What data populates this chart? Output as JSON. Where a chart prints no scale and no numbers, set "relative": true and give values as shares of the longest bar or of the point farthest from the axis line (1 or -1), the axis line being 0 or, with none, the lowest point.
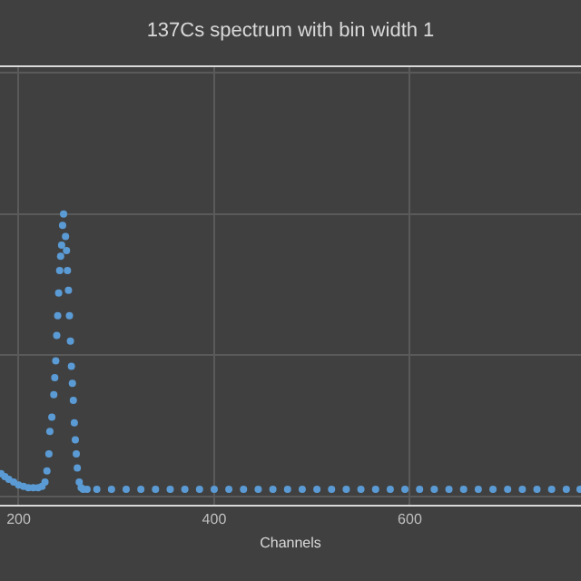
{
  "chart_data": {
    "type": "scatter",
    "title": "137Cs spectrum with bin width 1",
    "xlabel": "Channels",
    "relative": true,
    "x": [
      182,
      186,
      190,
      195,
      200,
      205,
      210,
      215,
      220,
      224,
      227,
      229,
      231,
      232,
      234,
      236,
      237,
      238,
      239,
      240,
      241,
      242,
      243,
      244,
      245,
      246,
      248,
      249,
      250,
      251,
      252,
      253,
      254,
      255,
      256,
      257,
      258,
      259,
      260,
      262,
      264,
      266,
      270,
      280,
      295,
      310,
      325,
      340,
      355,
      370,
      385,
      400,
      415,
      430,
      445,
      460,
      475,
      490,
      505,
      520,
      535,
      550,
      565,
      580,
      595,
      610,
      625,
      640,
      655,
      670,
      685,
      700,
      715,
      730,
      745,
      760,
      774
    ],
    "series": [
      {
        "color": "#5b9bd5",
        "values": [
          0.08,
          0.07,
          0.06,
          0.05,
          0.04,
          0.035,
          0.03,
          0.03,
          0.03,
          0.035,
          0.05,
          0.09,
          0.15,
          0.23,
          0.28,
          0.36,
          0.42,
          0.48,
          0.57,
          0.64,
          0.72,
          0.8,
          0.85,
          0.89,
          0.96,
          1.0,
          0.92,
          0.87,
          0.8,
          0.73,
          0.64,
          0.55,
          0.46,
          0.4,
          0.34,
          0.26,
          0.2,
          0.15,
          0.1,
          0.05,
          0.03,
          0.025,
          0.025,
          0.025,
          0.025,
          0.025,
          0.025,
          0.025,
          0.025,
          0.025,
          0.025,
          0.025,
          0.025,
          0.025,
          0.025,
          0.025,
          0.025,
          0.025,
          0.025,
          0.025,
          0.025,
          0.025,
          0.025,
          0.025,
          0.025,
          0.025,
          0.025,
          0.025,
          0.025,
          0.025,
          0.025,
          0.025,
          0.025,
          0.025,
          0.025,
          0.025,
          0.025
        ]
      }
    ],
    "xlim": [
      181,
      775
    ],
    "xticks": [
      200,
      400,
      600
    ],
    "grid": true,
    "marker": "circle"
  }
}
